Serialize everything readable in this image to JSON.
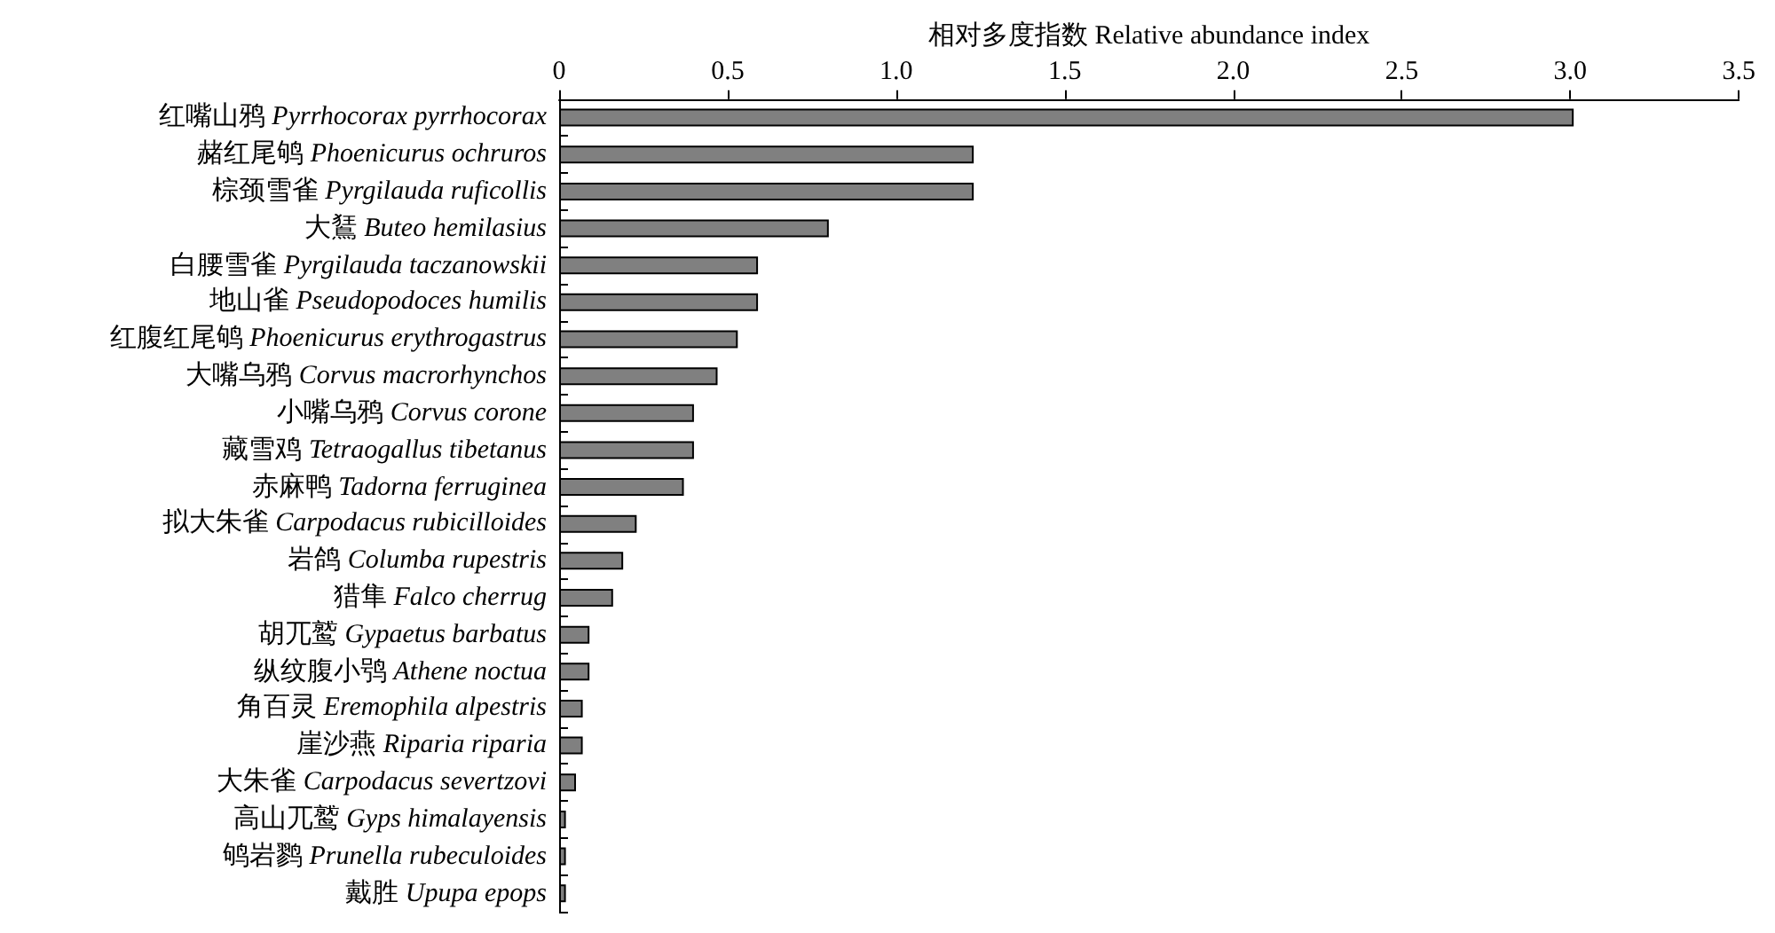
{
  "chart_data": {
    "type": "bar",
    "orientation": "horizontal",
    "xlabel": "相对多度指数 Relative abundance index",
    "categories": [
      "红嘴山鸦 Pyrrhocorax pyrrhocorax",
      "赭红尾鸲 Phoenicurus ochruros",
      "棕颈雪雀 Pyrgilauda ruficollis",
      "大鵟 Buteo hemilasius",
      "白腰雪雀 Pyrgilauda taczanowskii",
      "地山雀 Pseudopodoces humilis",
      "红腹红尾鸲 Phoenicurus erythrogastrus",
      "大嘴乌鸦 Corvus macrorhynchos",
      "小嘴乌鸦 Corvus corone",
      "藏雪鸡 Tetraogallus tibetanus",
      "赤麻鸭 Tadorna ferruginea",
      "拟大朱雀 Carpodacus rubicilloides",
      "岩鸽 Columba rupestris",
      "猎隼 Falco cherrug",
      "胡兀鹫 Gypaetus barbatus",
      "纵纹腹小鸮 Athene noctua",
      "角百灵 Eremophila alpestris",
      "崖沙燕 Riparia riparia",
      "大朱雀 Carpodacus severtzovi",
      "高山兀鹫 Gyps himalayensis",
      "鸲岩鹨 Prunella rubeculoides",
      "戴胜 Upupa epops"
    ],
    "values": [
      3.01,
      1.23,
      1.23,
      0.8,
      0.59,
      0.59,
      0.53,
      0.47,
      0.4,
      0.4,
      0.37,
      0.23,
      0.19,
      0.16,
      0.09,
      0.09,
      0.07,
      0.07,
      0.05,
      0.02,
      0.02,
      0.02
    ],
    "color": "#808080",
    "xlim": [
      0,
      3.5
    ],
    "xticks": [
      0,
      {
        "value": 0.5,
        "label": "0.5"
      },
      {
        "value": 1,
        "label": "1.0"
      },
      {
        "value": 1.5,
        "label": "1.5"
      },
      {
        "value": 2,
        "label": "2.0"
      },
      {
        "value": 2.5,
        "label": "2.5"
      },
      {
        "value": 3,
        "label": "3.0"
      },
      {
        "value": 3.5,
        "label": "3.5"
      }
    ],
    "grid": false
  }
}
